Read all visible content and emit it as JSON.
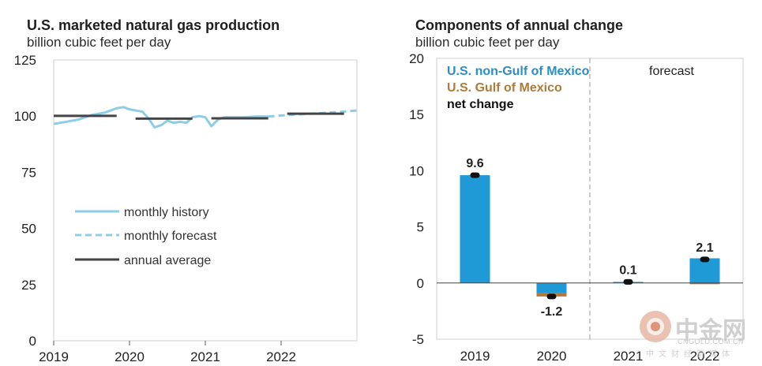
{
  "chart_data": [
    {
      "type": "line",
      "title": "U.S. marketed natural gas production",
      "ylabel": "billion cubic feet per day",
      "xlabel": "",
      "ylim": [
        0,
        125
      ],
      "yticks": [
        0,
        25,
        50,
        75,
        100,
        125
      ],
      "xlim": [
        2019,
        2023
      ],
      "xticks": [
        "2019",
        "2020",
        "2021",
        "2022"
      ],
      "grid": false,
      "legend_position": "bottom-left",
      "colors": {
        "history": "#8ecde8",
        "forecast": "#8ecde8",
        "annual": "#444444"
      },
      "series": [
        {
          "name": "monthly history",
          "style": "solid",
          "x": [
            2019.0,
            2019.17,
            2019.33,
            2019.5,
            2019.67,
            2019.83,
            2019.92,
            2020.0,
            2020.08,
            2020.17,
            2020.25,
            2020.33,
            2020.42,
            2020.5,
            2020.58,
            2020.67,
            2020.75,
            2020.83,
            2020.92,
            2021.0,
            2021.08,
            2021.17,
            2021.25,
            2021.33,
            2021.5,
            2021.67,
            2021.83
          ],
          "values": [
            96.5,
            97.5,
            98.5,
            100.5,
            101.5,
            103.5,
            104,
            103,
            102.5,
            102,
            99,
            95,
            96,
            98,
            97,
            97.5,
            97,
            99.5,
            100,
            99.5,
            95.5,
            98.5,
            99.5,
            99.5,
            99.5,
            99.8,
            99.8
          ]
        },
        {
          "name": "monthly forecast",
          "style": "dashed",
          "x": [
            2021.83,
            2022.0,
            2022.25,
            2022.5,
            2022.75,
            2023.0
          ],
          "values": [
            99.8,
            100.3,
            100.8,
            101.3,
            101.8,
            102.5
          ]
        },
        {
          "name": "annual average",
          "style": "step",
          "segments": [
            {
              "start": 2019.0,
              "end": 2019.83,
              "value": 100.1
            },
            {
              "start": 2020.08,
              "end": 2020.83,
              "value": 98.9
            },
            {
              "start": 2021.08,
              "end": 2021.83,
              "value": 99.0
            },
            {
              "start": 2022.08,
              "end": 2022.83,
              "value": 101.1
            }
          ]
        }
      ],
      "legend": [
        "monthly history",
        "monthly forecast",
        "annual average"
      ]
    },
    {
      "type": "bar",
      "title": "Components of annual change",
      "ylabel": "billion cubic  feet per day",
      "xlabel": "",
      "ylim": [
        -5,
        20
      ],
      "yticks": [
        -5,
        0,
        5,
        10,
        15,
        20
      ],
      "categories": [
        "2019",
        "2020",
        "2021",
        "2022"
      ],
      "grid": false,
      "legend_position": "top-left",
      "forecast_label": "forecast",
      "forecast_start_category": "2021",
      "colors": {
        "non_gulf": "#1f9ad6",
        "gulf": "#b07a3a",
        "net": "#111111",
        "forecast_line": "#aaaaaa"
      },
      "series": [
        {
          "name": "U.S. non-Gulf of Mexico",
          "values": [
            9.6,
            -0.9,
            0.1,
            2.2
          ]
        },
        {
          "name": "U.S. Gulf of Mexico",
          "values": [
            0.0,
            -0.3,
            0.0,
            -0.1
          ]
        },
        {
          "name": "net change",
          "values": [
            9.6,
            -1.2,
            0.1,
            2.1
          ]
        }
      ],
      "data_labels": [
        "9.6",
        "-1.2",
        "0.1",
        "2.1"
      ]
    }
  ],
  "watermark": {
    "logo_text": "中金网",
    "url": "CNGOLD.COM.CN",
    "subtitle": "中文财经新媒体"
  }
}
